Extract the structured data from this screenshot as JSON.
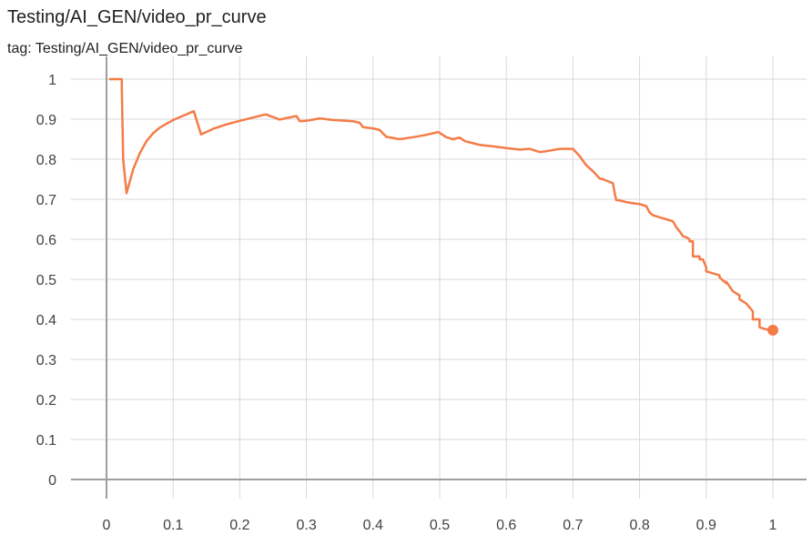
{
  "chart": {
    "title": "Testing/AI_GEN/video_pr_curve",
    "subtitle": "tag: Testing/AI_GEN/video_pr_curve"
  },
  "colors": {
    "series": "#f47c48",
    "grid": "#d9d9d9",
    "axis": "#9e9e9e",
    "text": "#424242"
  },
  "chart_data": {
    "type": "line",
    "title": "Testing/AI_GEN/video_pr_curve",
    "subtitle": "tag: Testing/AI_GEN/video_pr_curve",
    "xlabel": "",
    "ylabel": "",
    "xlim": [
      -0.05,
      1.05
    ],
    "ylim": [
      -0.05,
      1.02
    ],
    "x_ticks": [
      0,
      0.1,
      0.2,
      0.3,
      0.4,
      0.5,
      0.6,
      0.7,
      0.8,
      0.9,
      1
    ],
    "x_tick_labels": [
      "0",
      "0.1",
      "0.2",
      "0.3",
      "0.4",
      "0.5",
      "0.6",
      "0.7",
      "0.8",
      "0.9",
      "1"
    ],
    "y_ticks": [
      0,
      0.1,
      0.2,
      0.3,
      0.4,
      0.5,
      0.6,
      0.7,
      0.8,
      0.9,
      1
    ],
    "y_tick_labels": [
      "0",
      "0.1",
      "0.2",
      "0.3",
      "0.4",
      "0.5",
      "0.6",
      "0.7",
      "0.8",
      "0.9",
      "1"
    ],
    "grid": true,
    "legend": "none",
    "series": [
      {
        "x": [
          0.005,
          0.023,
          0.023,
          0.025,
          0.03,
          0.04,
          0.05,
          0.06,
          0.07,
          0.08,
          0.1,
          0.12,
          0.131,
          0.142,
          0.16,
          0.18,
          0.2,
          0.22,
          0.239,
          0.26,
          0.285,
          0.29,
          0.3,
          0.32,
          0.34,
          0.36,
          0.37,
          0.38,
          0.385,
          0.4,
          0.41,
          0.42,
          0.44,
          0.46,
          0.48,
          0.498,
          0.51,
          0.52,
          0.53,
          0.538,
          0.55,
          0.56,
          0.58,
          0.6,
          0.62,
          0.635,
          0.65,
          0.66,
          0.68,
          0.7,
          0.71,
          0.72,
          0.73,
          0.74,
          0.745,
          0.76,
          0.761,
          0.763,
          0.765,
          0.77,
          0.78,
          0.79,
          0.8,
          0.81,
          0.815,
          0.82,
          0.83,
          0.84,
          0.85,
          0.855,
          0.86,
          0.865,
          0.87,
          0.875,
          0.875,
          0.88,
          0.88,
          0.89,
          0.89,
          0.895,
          0.9,
          0.9,
          0.91,
          0.92,
          0.92,
          0.93,
          0.93,
          0.94,
          0.95,
          0.95,
          0.96,
          0.96,
          0.97,
          0.97,
          0.98,
          0.98,
          0.99,
          1.0
        ],
        "y": [
          1.0,
          1.0,
          0.98,
          0.8,
          0.715,
          0.775,
          0.815,
          0.845,
          0.865,
          0.879,
          0.898,
          0.912,
          0.92,
          0.862,
          0.876,
          0.887,
          0.896,
          0.904,
          0.912,
          0.899,
          0.908,
          0.895,
          0.896,
          0.902,
          0.898,
          0.896,
          0.895,
          0.891,
          0.88,
          0.877,
          0.873,
          0.856,
          0.85,
          0.855,
          0.861,
          0.868,
          0.855,
          0.85,
          0.854,
          0.845,
          0.84,
          0.836,
          0.832,
          0.828,
          0.824,
          0.826,
          0.818,
          0.82,
          0.826,
          0.826,
          0.808,
          0.785,
          0.77,
          0.752,
          0.75,
          0.74,
          0.73,
          0.712,
          0.698,
          0.697,
          0.693,
          0.69,
          0.688,
          0.683,
          0.667,
          0.66,
          0.655,
          0.65,
          0.645,
          0.63,
          0.62,
          0.608,
          0.605,
          0.6,
          0.595,
          0.595,
          0.557,
          0.557,
          0.55,
          0.55,
          0.53,
          0.52,
          0.515,
          0.51,
          0.505,
          0.49,
          0.494,
          0.47,
          0.46,
          0.45,
          0.44,
          0.44,
          0.42,
          0.4,
          0.4,
          0.38,
          0.375,
          0.373
        ]
      }
    ],
    "end_marker": {
      "x": 1.0,
      "y": 0.373
    }
  }
}
